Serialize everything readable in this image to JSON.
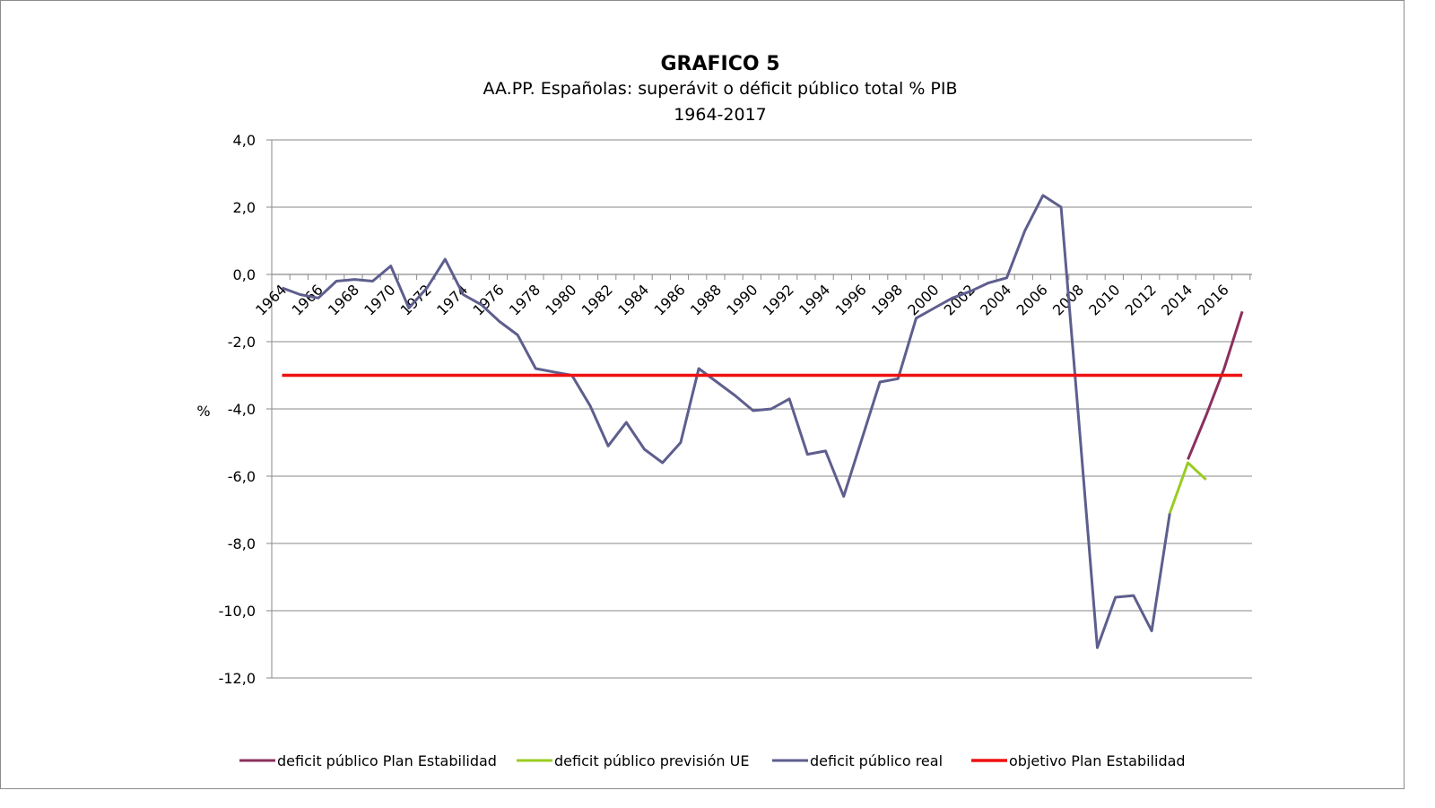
{
  "chart_data": {
    "type": "line",
    "title": "GRAFICO 5",
    "subtitle": "AA.PP. Españolas:  superávit o déficit público total  % PIB",
    "period": "1964-2017",
    "ylabel": "%",
    "xlabel": "",
    "ylim": [
      -12,
      4
    ],
    "y_ticks": [
      4,
      2,
      0,
      -2,
      -4,
      -6,
      -8,
      -10,
      -12
    ],
    "y_tick_labels": [
      "4,0",
      "2,0",
      "0,0",
      "-2,0",
      "-4,0",
      "-6,0",
      "-8,0",
      "-10,0",
      "-12,0"
    ],
    "x_range": [
      1964,
      2017
    ],
    "x_tick_labels": [
      "1964",
      "1966",
      "1968",
      "1970",
      "1972",
      "1974",
      "1976",
      "1978",
      "1980",
      "1982",
      "1984",
      "1986",
      "1988",
      "1990",
      "1992",
      "1994",
      "1996",
      "1998",
      "2000",
      "2002",
      "2004",
      "2006",
      "2008",
      "2010",
      "2012",
      "2014",
      "2016"
    ],
    "grid": true,
    "legend_position": "bottom",
    "series": [
      {
        "name": "deficit público Plan Estabilidad",
        "color": "#8b2f5e",
        "x": [
          2014,
          2015,
          2016,
          2017
        ],
        "values": [
          -5.5,
          -4.2,
          -2.8,
          -1.1
        ]
      },
      {
        "name": "deficit público previsión UE",
        "color": "#99cc22",
        "x": [
          2013,
          2014,
          2015
        ],
        "values": [
          -7.1,
          -5.6,
          -6.1
        ]
      },
      {
        "name": "deficit público real",
        "color": "#5e5e8e",
        "x": [
          1964,
          1965,
          1966,
          1967,
          1968,
          1969,
          1970,
          1971,
          1972,
          1973,
          1974,
          1975,
          1976,
          1977,
          1978,
          1979,
          1980,
          1981,
          1982,
          1983,
          1984,
          1985,
          1986,
          1987,
          1988,
          1989,
          1990,
          1991,
          1992,
          1993,
          1994,
          1995,
          1996,
          1997,
          1998,
          1999,
          2000,
          2001,
          2002,
          2003,
          2004,
          2005,
          2006,
          2007,
          2008,
          2009,
          2010,
          2011,
          2012,
          2013
        ],
        "values": [
          -0.4,
          -0.6,
          -0.7,
          -0.2,
          -0.15,
          -0.2,
          0.25,
          -1.0,
          -0.4,
          0.45,
          -0.6,
          -0.9,
          -1.4,
          -1.8,
          -2.8,
          -2.9,
          -3.0,
          -3.9,
          -5.1,
          -4.4,
          -5.2,
          -5.6,
          -5.0,
          -2.8,
          -3.2,
          -3.6,
          -4.05,
          -4.0,
          -3.7,
          -5.35,
          -5.25,
          -6.6,
          -4.9,
          -3.2,
          -3.1,
          -1.3,
          -1.0,
          -0.7,
          -0.5,
          -0.25,
          -0.1,
          1.3,
          2.35,
          2.0,
          -4.5,
          -11.1,
          -9.6,
          -9.55,
          -10.6,
          -7.1
        ]
      },
      {
        "name": "objetivo Plan Estabilidad",
        "color": "#ee1111",
        "x": [
          1964,
          2017
        ],
        "values": [
          -3.0,
          -3.0
        ]
      }
    ]
  }
}
